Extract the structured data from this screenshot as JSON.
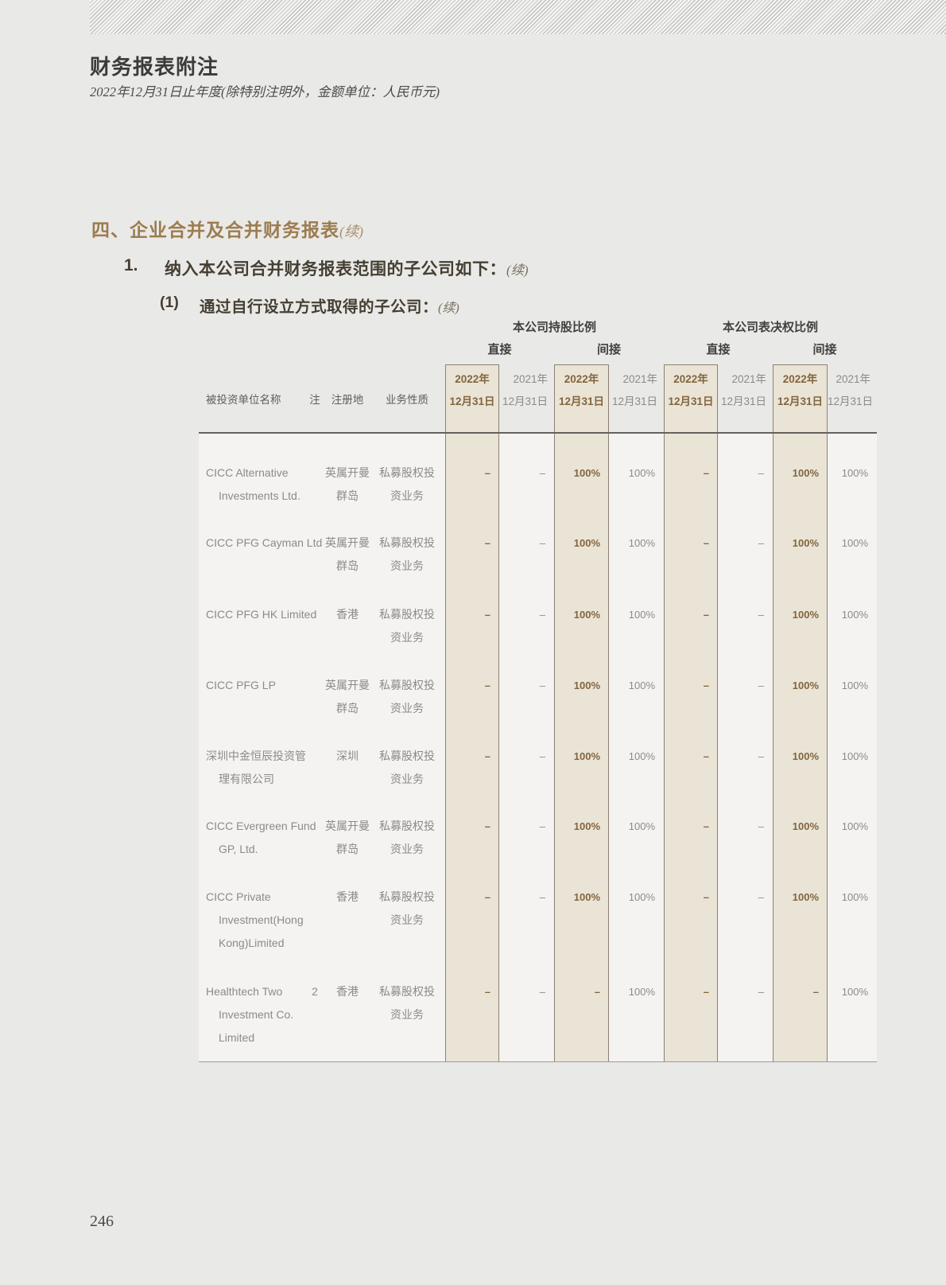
{
  "header": {
    "title": "财务报表附注",
    "subtitle": "2022年12月31日止年度(除特别注明外，金额单位：人民币元)"
  },
  "section": {
    "heading": "四、企业合并及合并财务报表",
    "heading_cont": "(续)"
  },
  "items": [
    {
      "num": "1.",
      "text": "纳入本公司合并财务报表范围的子公司如下：",
      "cont": "(续)"
    },
    {
      "num": "(1)",
      "text": "通过自行设立方式取得的子公司：",
      "cont": "(续)"
    }
  ],
  "table": {
    "groups": [
      "本公司持股比例",
      "本公司表决权比例"
    ],
    "subgroups": [
      "直接",
      "间接",
      "直接",
      "间接"
    ],
    "col_headers_left": [
      "被投资单位名称",
      "注",
      "注册地",
      "业务性质"
    ],
    "value_cols": [
      {
        "year": "2022年",
        "date": "12月31日",
        "highlight": true
      },
      {
        "year": "2021年",
        "date": "12月31日",
        "highlight": false
      },
      {
        "year": "2022年",
        "date": "12月31日",
        "highlight": true
      },
      {
        "year": "2021年",
        "date": "12月31日",
        "highlight": false
      },
      {
        "year": "2022年",
        "date": "12月31日",
        "highlight": true
      },
      {
        "year": "2021年",
        "date": "12月31日",
        "highlight": false
      },
      {
        "year": "2022年",
        "date": "12月31日",
        "highlight": true
      },
      {
        "year": "2021年",
        "date": "12月31日",
        "highlight": false
      }
    ],
    "rows": [
      {
        "name": [
          "CICC Alternative",
          "Investments Ltd."
        ],
        "note": "",
        "reg": [
          "英属开曼",
          "群岛"
        ],
        "biz": [
          "私募股权投",
          "资业务"
        ],
        "values": [
          "–",
          "–",
          "100%",
          "100%",
          "–",
          "–",
          "100%",
          "100%"
        ]
      },
      {
        "name": [
          "CICC PFG Cayman Ltd"
        ],
        "note": "",
        "reg": [
          "英属开曼",
          "群岛"
        ],
        "biz": [
          "私募股权投",
          "资业务"
        ],
        "values": [
          "–",
          "–",
          "100%",
          "100%",
          "–",
          "–",
          "100%",
          "100%"
        ]
      },
      {
        "name": [
          "CICC PFG HK Limited"
        ],
        "note": "",
        "reg": [
          "香港"
        ],
        "biz": [
          "私募股权投",
          "资业务"
        ],
        "values": [
          "–",
          "–",
          "100%",
          "100%",
          "–",
          "–",
          "100%",
          "100%"
        ]
      },
      {
        "name": [
          "CICC PFG LP"
        ],
        "note": "",
        "reg": [
          "英属开曼",
          "群岛"
        ],
        "biz": [
          "私募股权投",
          "资业务"
        ],
        "values": [
          "–",
          "–",
          "100%",
          "100%",
          "–",
          "–",
          "100%",
          "100%"
        ]
      },
      {
        "name": [
          "深圳中金恒辰投资管",
          "理有限公司"
        ],
        "note": "",
        "reg": [
          "深圳"
        ],
        "biz": [
          "私募股权投",
          "资业务"
        ],
        "values": [
          "–",
          "–",
          "100%",
          "100%",
          "–",
          "–",
          "100%",
          "100%"
        ]
      },
      {
        "name": [
          "CICC Evergreen Fund",
          "GP, Ltd."
        ],
        "note": "",
        "reg": [
          "英属开曼",
          "群岛"
        ],
        "biz": [
          "私募股权投",
          "资业务"
        ],
        "values": [
          "–",
          "–",
          "100%",
          "100%",
          "–",
          "–",
          "100%",
          "100%"
        ]
      },
      {
        "name": [
          "CICC Private",
          "Investment(Hong",
          "Kong)Limited"
        ],
        "note": "",
        "reg": [
          "香港"
        ],
        "biz": [
          "私募股权投",
          "资业务"
        ],
        "values": [
          "–",
          "–",
          "100%",
          "100%",
          "–",
          "–",
          "100%",
          "100%"
        ]
      },
      {
        "name": [
          "Healthtech Two",
          "Investment Co.",
          "Limited"
        ],
        "note": "2",
        "reg": [
          "香港"
        ],
        "biz": [
          "私募股权投",
          "资业务"
        ],
        "values": [
          "–",
          "–",
          "–",
          "100%",
          "–",
          "–",
          "–",
          "100%"
        ]
      }
    ]
  },
  "page": {
    "number": "246"
  },
  "colors": {
    "page_bg": "#e9e9e7",
    "table_bg": "#f4f3f1",
    "accent_brown": "#82653e",
    "heading_gold": "#9c7c4f",
    "highlight_fill": "#eae4d6",
    "highlight_border": "#8c8170",
    "text_dark": "#41403d",
    "text_gray": "#8b8b89"
  }
}
